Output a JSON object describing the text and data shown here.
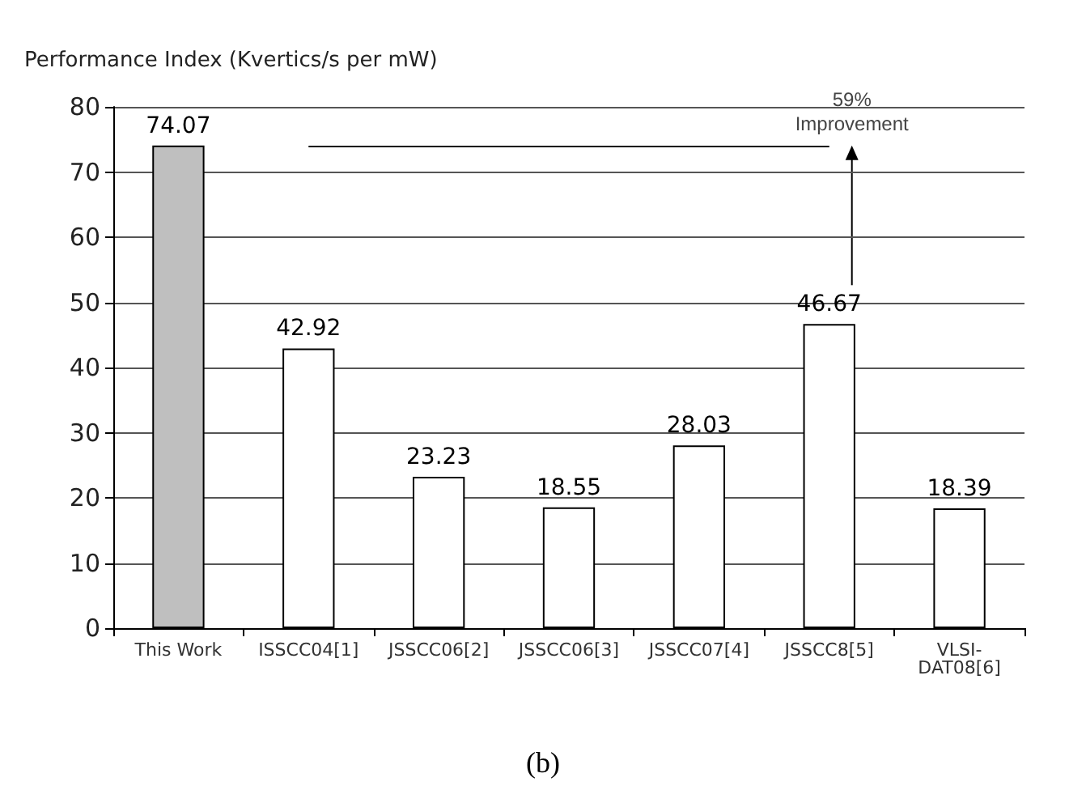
{
  "chart_data": {
    "type": "bar",
    "ylabel": "Performance Index (Kvertics/s per mW)",
    "categories": [
      "This Work",
      "ISSCC04[1]",
      "JSSCC06[2]",
      "JSSCC06[3]",
      "JSSCC07[4]",
      "JSSCC8[5]",
      "VLSI-DAT08[6]"
    ],
    "values": [
      74.07,
      42.92,
      23.23,
      18.55,
      28.03,
      46.67,
      18.39
    ],
    "colors": [
      "#bfbfbf",
      "#ffffff",
      "#ffffff",
      "#ffffff",
      "#ffffff",
      "#ffffff",
      "#ffffff"
    ],
    "ylim": [
      0,
      80
    ],
    "yticks": [
      0,
      10,
      20,
      30,
      40,
      50,
      60,
      70,
      80
    ],
    "grid": "y",
    "data_labels": true,
    "ref_lines": [
      {
        "axis": "y",
        "value": 74.07,
        "label": "59%\nImprovement"
      }
    ],
    "annotations": [
      "(b)"
    ]
  }
}
